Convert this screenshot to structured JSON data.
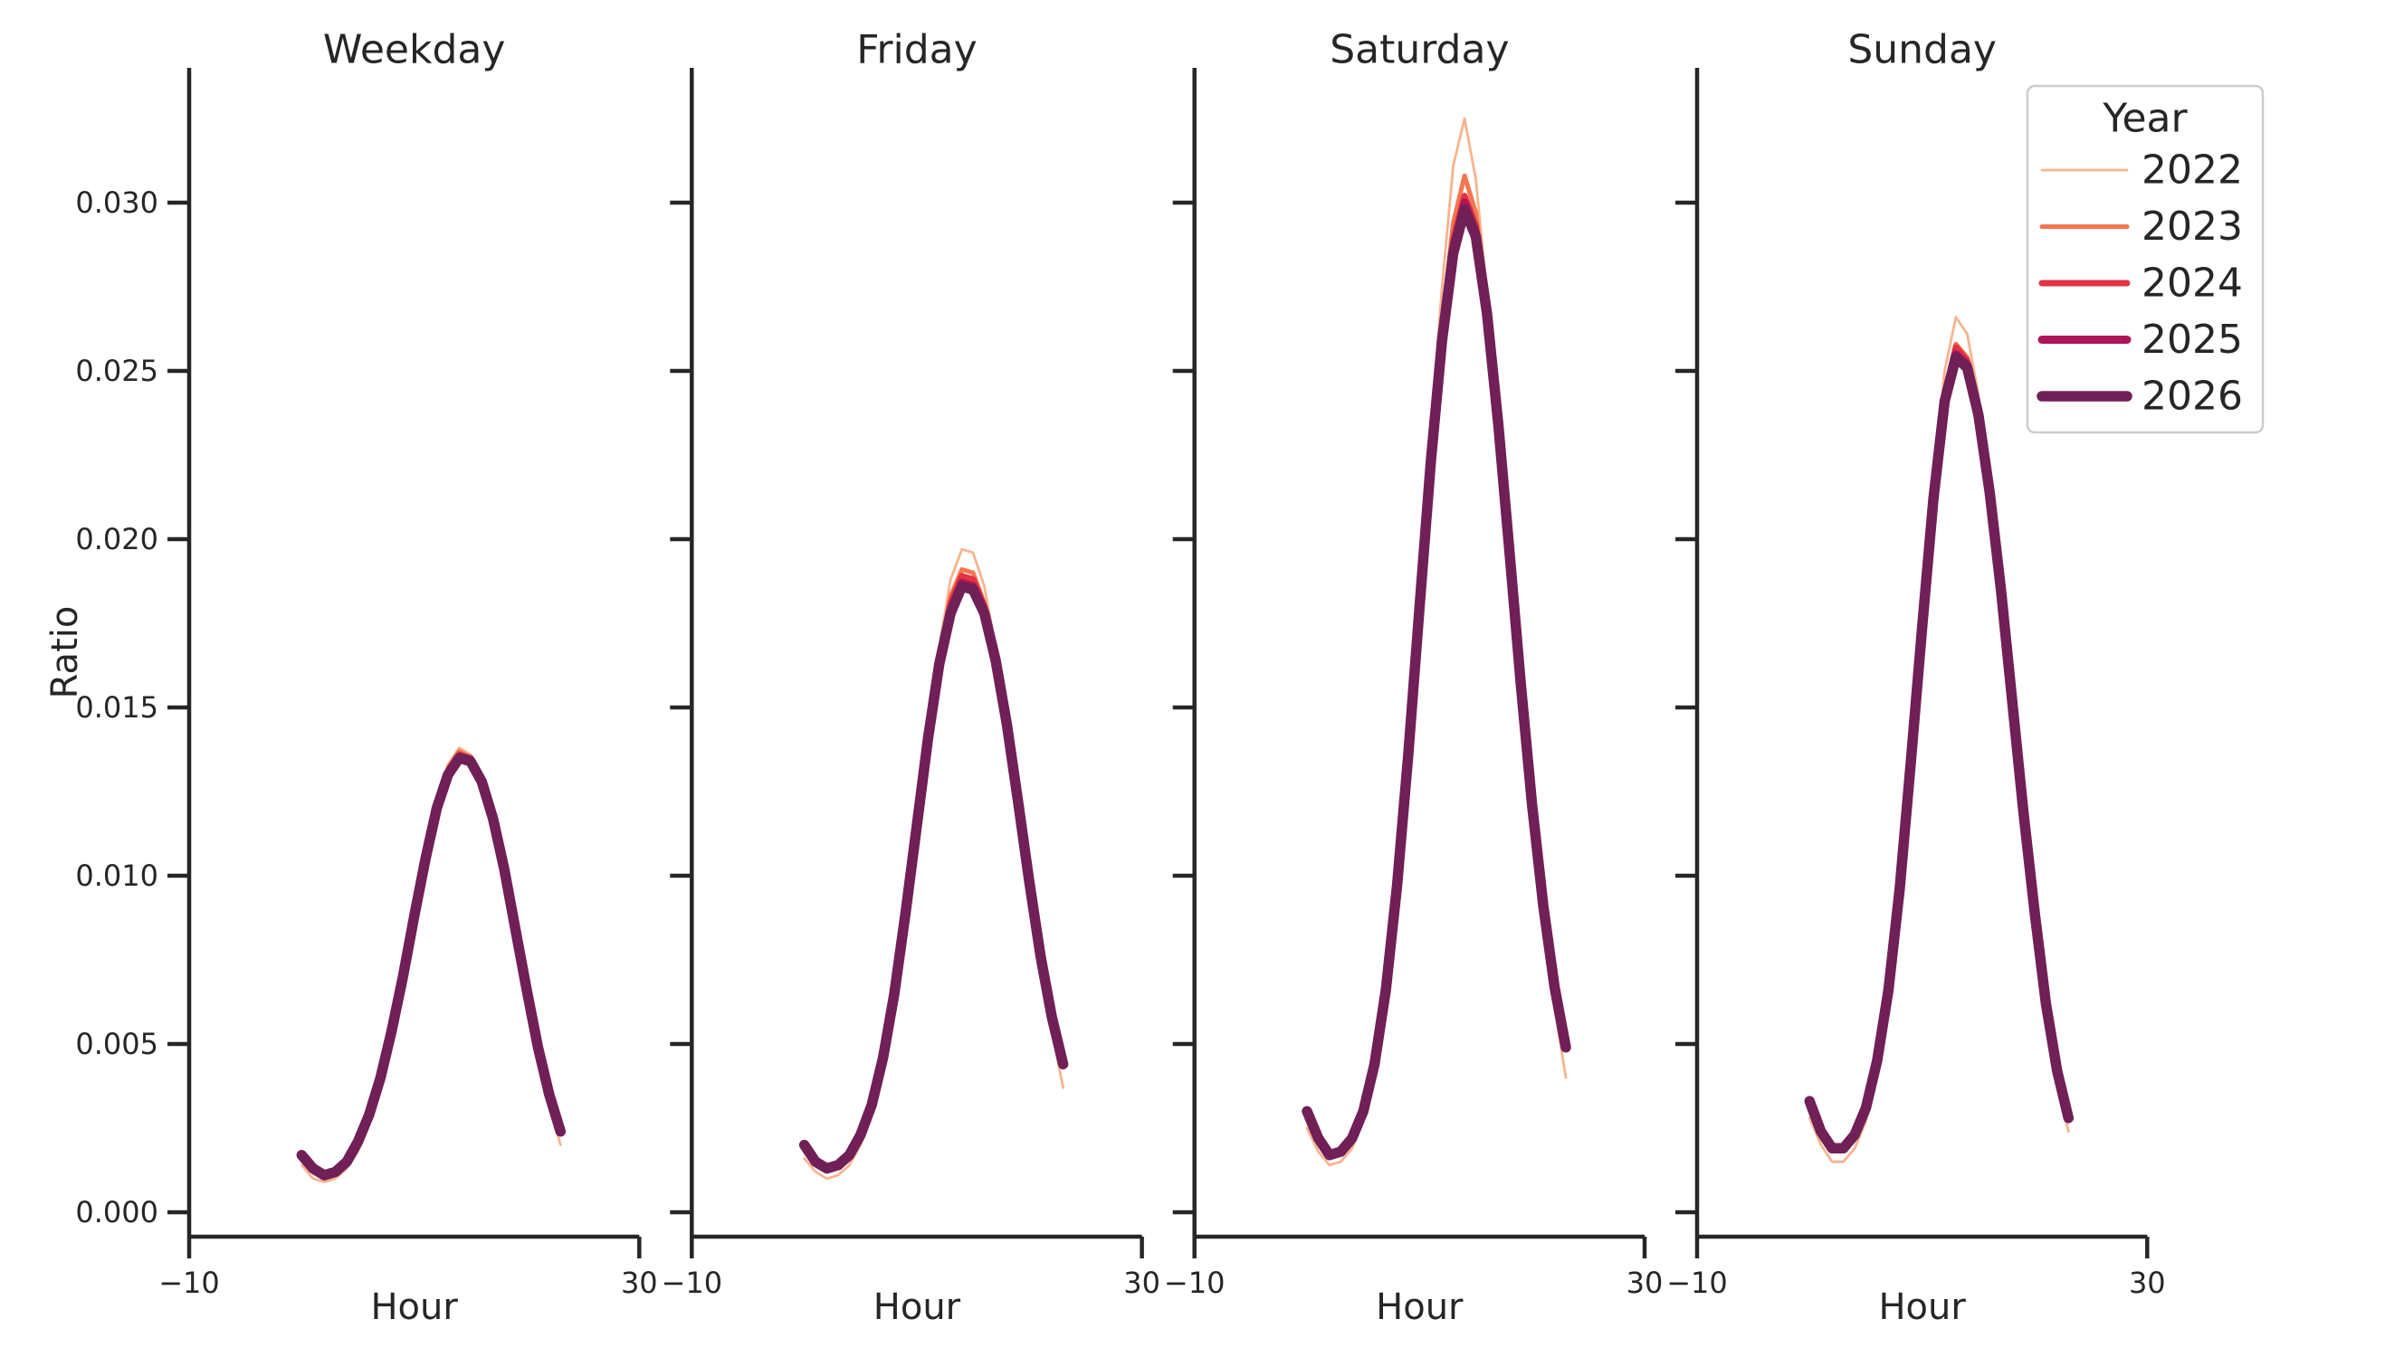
{
  "figure": {
    "background": "#ffffff",
    "text_color": "#262626",
    "spine_color": "#262626",
    "legend_border_color": "#cccccc"
  },
  "chart_data": {
    "type": "line",
    "facet_titles": [
      "Weekday",
      "Friday",
      "Saturday",
      "Sunday"
    ],
    "xlabel": "Hour",
    "ylabel": "Ratio",
    "xlim": [
      -10,
      30
    ],
    "ylim": [
      0,
      0.034
    ],
    "grid": false,
    "x_ticks": [
      -10,
      30
    ],
    "x_tick_labels": [
      "−10",
      "30"
    ],
    "y_ticks": [
      0.0,
      0.005,
      0.01,
      0.015,
      0.02,
      0.025,
      0.03
    ],
    "y_tick_labels": [
      "0.000",
      "0.005",
      "0.010",
      "0.015",
      "0.020",
      "0.025",
      "0.030"
    ],
    "legend": {
      "title": "Year",
      "position": "upper right",
      "entries": [
        {
          "label": "2022",
          "color": "#f6b48e",
          "linewidth": 2.8
        },
        {
          "label": "2023",
          "color": "#f3764f",
          "linewidth": 5
        },
        {
          "label": "2024",
          "color": "#e13342",
          "linewidth": 7
        },
        {
          "label": "2025",
          "color": "#ad1759",
          "linewidth": 9
        },
        {
          "label": "2026",
          "color": "#701f57",
          "linewidth": 11.5
        }
      ]
    },
    "hours": [
      0,
      1,
      2,
      3,
      4,
      5,
      6,
      7,
      8,
      9,
      10,
      11,
      12,
      13,
      14,
      15,
      16,
      17,
      18,
      19,
      20,
      21,
      22,
      23
    ],
    "panels": [
      {
        "title": "Weekday",
        "series": [
          {
            "year": "2022",
            "values": [
              0.0014,
              0.001,
              0.0009,
              0.001,
              0.0013,
              0.0018,
              0.0026,
              0.0037,
              0.0051,
              0.0067,
              0.0086,
              0.0104,
              0.0121,
              0.0133,
              0.0138,
              0.0136,
              0.0128,
              0.0116,
              0.01,
              0.0082,
              0.0063,
              0.0046,
              0.0032,
              0.002
            ]
          },
          {
            "year": "2023",
            "values": [
              0.0017,
              0.0013,
              0.0011,
              0.0012,
              0.0015,
              0.0021,
              0.0029,
              0.004,
              0.0054,
              0.007,
              0.0088,
              0.0105,
              0.0121,
              0.0132,
              0.0137,
              0.0135,
              0.0129,
              0.0117,
              0.0102,
              0.0084,
              0.0066,
              0.0049,
              0.0035,
              0.0024
            ]
          },
          {
            "year": "2024",
            "values": [
              0.0017,
              0.0013,
              0.0011,
              0.0012,
              0.0015,
              0.0021,
              0.0029,
              0.004,
              0.0054,
              0.007,
              0.0088,
              0.0105,
              0.012,
              0.0131,
              0.0136,
              0.0135,
              0.0128,
              0.0117,
              0.0102,
              0.0084,
              0.0066,
              0.0049,
              0.0035,
              0.0024
            ]
          },
          {
            "year": "2025",
            "values": [
              0.0017,
              0.0013,
              0.0011,
              0.0012,
              0.0015,
              0.0021,
              0.0029,
              0.004,
              0.0054,
              0.007,
              0.0088,
              0.0105,
              0.012,
              0.013,
              0.0135,
              0.0134,
              0.0128,
              0.0117,
              0.0102,
              0.0084,
              0.0066,
              0.0049,
              0.0035,
              0.0024
            ]
          },
          {
            "year": "2026",
            "values": [
              0.0017,
              0.0013,
              0.0011,
              0.0012,
              0.0015,
              0.0021,
              0.0029,
              0.004,
              0.0054,
              0.007,
              0.0088,
              0.0105,
              0.012,
              0.013,
              0.0135,
              0.0134,
              0.0128,
              0.0117,
              0.0102,
              0.0084,
              0.0066,
              0.0049,
              0.0035,
              0.0024
            ]
          }
        ]
      },
      {
        "title": "Friday",
        "series": [
          {
            "year": "2022",
            "values": [
              0.0016,
              0.0012,
              0.001,
              0.0011,
              0.0014,
              0.002,
              0.0029,
              0.0043,
              0.0062,
              0.0087,
              0.0114,
              0.0143,
              0.0168,
              0.0188,
              0.0197,
              0.0196,
              0.0186,
              0.0168,
              0.0146,
              0.0121,
              0.0096,
              0.0073,
              0.0054,
              0.0037
            ]
          },
          {
            "year": "2023",
            "values": [
              0.002,
              0.0015,
              0.0013,
              0.0014,
              0.0017,
              0.0023,
              0.0032,
              0.0046,
              0.0065,
              0.0089,
              0.0115,
              0.0142,
              0.0165,
              0.0183,
              0.0191,
              0.019,
              0.0181,
              0.0165,
              0.0146,
              0.0123,
              0.0098,
              0.0076,
              0.0058,
              0.0044
            ]
          },
          {
            "year": "2024",
            "values": [
              0.002,
              0.0015,
              0.0013,
              0.0014,
              0.0017,
              0.0023,
              0.0032,
              0.0046,
              0.0065,
              0.0089,
              0.0115,
              0.0142,
              0.0164,
              0.0181,
              0.0189,
              0.0188,
              0.018,
              0.0164,
              0.0145,
              0.0122,
              0.0098,
              0.0076,
              0.0058,
              0.0044
            ]
          },
          {
            "year": "2025",
            "values": [
              0.002,
              0.0015,
              0.0013,
              0.0014,
              0.0017,
              0.0023,
              0.0032,
              0.0046,
              0.0065,
              0.0089,
              0.0115,
              0.0141,
              0.0163,
              0.0179,
              0.0187,
              0.0186,
              0.0179,
              0.0164,
              0.0145,
              0.0122,
              0.0098,
              0.0076,
              0.0058,
              0.0044
            ]
          },
          {
            "year": "2026",
            "values": [
              0.002,
              0.0015,
              0.0013,
              0.0014,
              0.0017,
              0.0023,
              0.0032,
              0.0046,
              0.0065,
              0.0089,
              0.0115,
              0.0141,
              0.0163,
              0.0178,
              0.0186,
              0.0185,
              0.0178,
              0.0164,
              0.0145,
              0.0122,
              0.0098,
              0.0076,
              0.0058,
              0.0044
            ]
          }
        ]
      },
      {
        "title": "Saturday",
        "series": [
          {
            "year": "2022",
            "values": [
              0.0025,
              0.0018,
              0.0014,
              0.0015,
              0.0019,
              0.0027,
              0.0041,
              0.0063,
              0.0094,
              0.0135,
              0.0183,
              0.0232,
              0.0275,
              0.0311,
              0.0325,
              0.0307,
              0.0273,
              0.0237,
              0.0197,
              0.0156,
              0.0118,
              0.0086,
              0.0061,
              0.004
            ]
          },
          {
            "year": "2023",
            "values": [
              0.003,
              0.0022,
              0.0017,
              0.0018,
              0.0022,
              0.003,
              0.0044,
              0.0066,
              0.0097,
              0.0136,
              0.0181,
              0.0226,
              0.0264,
              0.0294,
              0.0308,
              0.0297,
              0.0271,
              0.0236,
              0.0197,
              0.0158,
              0.0121,
              0.0091,
              0.0067,
              0.0049
            ]
          },
          {
            "year": "2024",
            "values": [
              0.003,
              0.0022,
              0.0017,
              0.0018,
              0.0022,
              0.003,
              0.0044,
              0.0066,
              0.0097,
              0.0136,
              0.018,
              0.0224,
              0.0261,
              0.0289,
              0.0302,
              0.0293,
              0.0269,
              0.0235,
              0.0196,
              0.0157,
              0.0121,
              0.0091,
              0.0067,
              0.0049
            ]
          },
          {
            "year": "2025",
            "values": [
              0.003,
              0.0022,
              0.0017,
              0.0018,
              0.0022,
              0.003,
              0.0044,
              0.0066,
              0.0097,
              0.0136,
              0.018,
              0.0223,
              0.026,
              0.0286,
              0.03,
              0.0291,
              0.0268,
              0.0234,
              0.0196,
              0.0157,
              0.0121,
              0.0091,
              0.0067,
              0.0049
            ]
          },
          {
            "year": "2026",
            "values": [
              0.003,
              0.0022,
              0.0017,
              0.0018,
              0.0022,
              0.003,
              0.0044,
              0.0066,
              0.0097,
              0.0136,
              0.018,
              0.0223,
              0.0259,
              0.0285,
              0.0298,
              0.029,
              0.0267,
              0.0234,
              0.0196,
              0.0157,
              0.0121,
              0.0091,
              0.0067,
              0.0049
            ]
          }
        ]
      },
      {
        "title": "Sunday",
        "series": [
          {
            "year": "2022",
            "values": [
              0.0028,
              0.002,
              0.0015,
              0.0015,
              0.0019,
              0.0027,
              0.0042,
              0.0063,
              0.0094,
              0.0133,
              0.0176,
              0.0217,
              0.025,
              0.0266,
              0.0261,
              0.0243,
              0.0215,
              0.0184,
              0.015,
              0.0116,
              0.0085,
              0.0058,
              0.0038,
              0.0024
            ]
          },
          {
            "year": "2023",
            "values": [
              0.0033,
              0.0024,
              0.0019,
              0.0019,
              0.0023,
              0.0031,
              0.0045,
              0.0066,
              0.0096,
              0.0134,
              0.0175,
              0.0214,
              0.0244,
              0.0258,
              0.0254,
              0.024,
              0.0216,
              0.0186,
              0.0153,
              0.012,
              0.0089,
              0.0062,
              0.0042,
              0.0028
            ]
          },
          {
            "year": "2024",
            "values": [
              0.0033,
              0.0024,
              0.0019,
              0.0019,
              0.0023,
              0.0031,
              0.0045,
              0.0066,
              0.0096,
              0.0134,
              0.0175,
              0.0213,
              0.0243,
              0.0257,
              0.0253,
              0.0239,
              0.0215,
              0.0186,
              0.0153,
              0.012,
              0.0089,
              0.0062,
              0.0042,
              0.0028
            ]
          },
          {
            "year": "2025",
            "values": [
              0.0033,
              0.0024,
              0.0019,
              0.0019,
              0.0023,
              0.0031,
              0.0045,
              0.0066,
              0.0096,
              0.0134,
              0.0174,
              0.0212,
              0.0242,
              0.0255,
              0.0252,
              0.0238,
              0.0215,
              0.0185,
              0.0152,
              0.0119,
              0.0089,
              0.0062,
              0.0042,
              0.0028
            ]
          },
          {
            "year": "2026",
            "values": [
              0.0033,
              0.0024,
              0.0019,
              0.0019,
              0.0023,
              0.0031,
              0.0045,
              0.0066,
              0.0096,
              0.0134,
              0.0174,
              0.0212,
              0.0241,
              0.0254,
              0.0251,
              0.0237,
              0.0214,
              0.0185,
              0.0152,
              0.0119,
              0.0089,
              0.0062,
              0.0042,
              0.0028
            ]
          }
        ]
      }
    ]
  }
}
